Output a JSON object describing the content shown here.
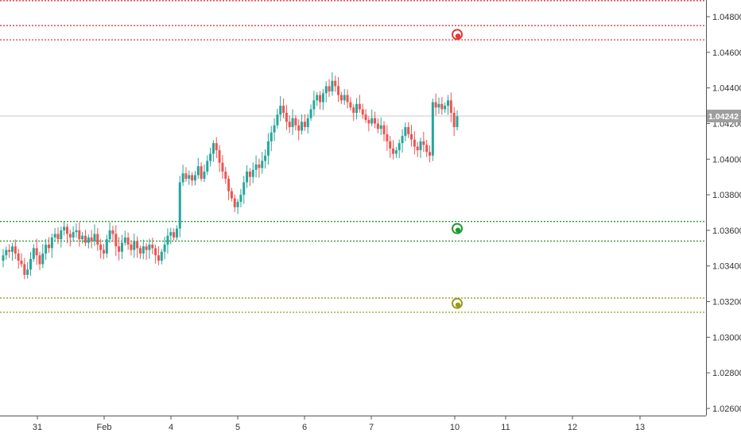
{
  "chart_data": {
    "type": "candlestick",
    "y_axis": {
      "ticks": [
        "1.04800",
        "1.04600",
        "1.04400",
        "1.04200",
        "1.04000",
        "1.03800",
        "1.03600",
        "1.03400",
        "1.03200",
        "1.03000",
        "1.02800",
        "1.02600"
      ],
      "range": [
        1.0259,
        1.0488
      ]
    },
    "x_axis": {
      "ticks": [
        "31",
        "Feb",
        "4",
        "5",
        "6",
        "7",
        "10",
        "11",
        "12",
        "13"
      ]
    },
    "current_price": {
      "label": "1.04242",
      "value": 1.04242
    },
    "horizontal_levels": [
      {
        "price": 1.0489,
        "color": "#e53935",
        "style": "dotted"
      },
      {
        "price": 1.0475,
        "color": "#e53935",
        "style": "dotted"
      },
      {
        "price": 1.0467,
        "color": "#e53935",
        "style": "dotted"
      },
      {
        "price": 1.0365,
        "color": "#1e9b2f",
        "style": "dotted"
      },
      {
        "price": 1.0354,
        "color": "#1e9b2f",
        "style": "dotted"
      },
      {
        "price": 1.0322,
        "color": "#9a9a1c",
        "style": "dotted"
      },
      {
        "price": 1.0314,
        "color": "#9a9a1c",
        "style": "dotted"
      }
    ],
    "markers": [
      {
        "price": 1.047,
        "color": "#e53935"
      },
      {
        "price": 1.0361,
        "color": "#1e9b2f"
      },
      {
        "price": 1.0319,
        "color": "#9a9a1c"
      }
    ],
    "colors": {
      "up": "#26a69a",
      "down": "#ef5350",
      "price_line": "#c8c8c8",
      "price_label_bg": "#9e9e9e"
    },
    "candles_close": [
      1.0346,
      1.0349,
      1.0348,
      1.0351,
      1.0347,
      1.0343,
      1.0341,
      1.0335,
      1.0338,
      1.0344,
      1.035,
      1.0346,
      1.0341,
      1.0347,
      1.0352,
      1.035,
      1.0356,
      1.0358,
      1.0355,
      1.036,
      1.0362,
      1.0358,
      1.0356,
      1.0359,
      1.036,
      1.0355,
      1.0357,
      1.0353,
      1.0356,
      1.0354,
      1.0358,
      1.0352,
      1.0349,
      1.0347,
      1.0355,
      1.036,
      1.0358,
      1.0351,
      1.0348,
      1.0353,
      1.0356,
      1.0352,
      1.0349,
      1.0354,
      1.035,
      1.0347,
      1.0351,
      1.0349,
      1.0352,
      1.035,
      1.0346,
      1.0343,
      1.0348,
      1.0352,
      1.0357,
      1.0359,
      1.0356,
      1.0361,
      1.0387,
      1.0392,
      1.0389,
      1.0391,
      1.0388,
      1.0391,
      1.0396,
      1.0389,
      1.0393,
      1.0399,
      1.0403,
      1.0409,
      1.0405,
      1.0398,
      1.0393,
      1.0389,
      1.0382,
      1.0378,
      1.0373,
      1.0376,
      1.038,
      1.0387,
      1.0393,
      1.039,
      1.0394,
      1.0397,
      1.0395,
      1.0399,
      1.0402,
      1.041,
      1.0415,
      1.0419,
      1.0425,
      1.043,
      1.0426,
      1.0421,
      1.0418,
      1.0423,
      1.0419,
      1.0416,
      1.0421,
      1.0418,
      1.0423,
      1.0428,
      1.0433,
      1.0436,
      1.0432,
      1.0437,
      1.0441,
      1.0438,
      1.0444,
      1.0441,
      1.0436,
      1.0433,
      1.0436,
      1.0432,
      1.0429,
      1.0426,
      1.0431,
      1.0428,
      1.0425,
      1.0422,
      1.042,
      1.0423,
      1.042,
      1.0417,
      1.0419,
      1.0414,
      1.041,
      1.0406,
      1.0403,
      1.0405,
      1.0409,
      1.0413,
      1.0418,
      1.0414,
      1.0411,
      1.0407,
      1.0405,
      1.041,
      1.0408,
      1.0404,
      1.0402,
      1.0432,
      1.0429,
      1.0431,
      1.0428,
      1.043,
      1.0433,
      1.0426,
      1.0418,
      1.0424
    ]
  }
}
